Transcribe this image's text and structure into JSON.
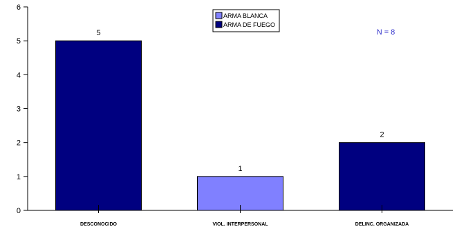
{
  "chart_data": {
    "type": "bar",
    "categories": [
      "DESCONOCIDO",
      "VIOL. INTERPERSONAL",
      "DELINC. ORGANIZADA"
    ],
    "series": [
      {
        "name": "ARMA BLANCA",
        "color": "#8080FF"
      },
      {
        "name": "ARMA DE FUEGO",
        "color": "#000080"
      }
    ],
    "bars": [
      {
        "category": "DESCONOCIDO",
        "series": "ARMA DE FUEGO",
        "value": 5,
        "label": "5"
      },
      {
        "category": "VIOL. INTERPERSONAL",
        "series": "ARMA BLANCA",
        "value": 1,
        "label": "1"
      },
      {
        "category": "DELINC. ORGANIZADA",
        "series": "ARMA DE FUEGO",
        "value": 2,
        "label": "2"
      }
    ],
    "yticks": [
      "0",
      "1",
      "2",
      "3",
      "4",
      "5",
      "6"
    ],
    "ylim": [
      0,
      6
    ],
    "grid": false,
    "legend_position": "top-center",
    "annotation": {
      "text": "N = 8",
      "color": "#3333CC"
    }
  }
}
